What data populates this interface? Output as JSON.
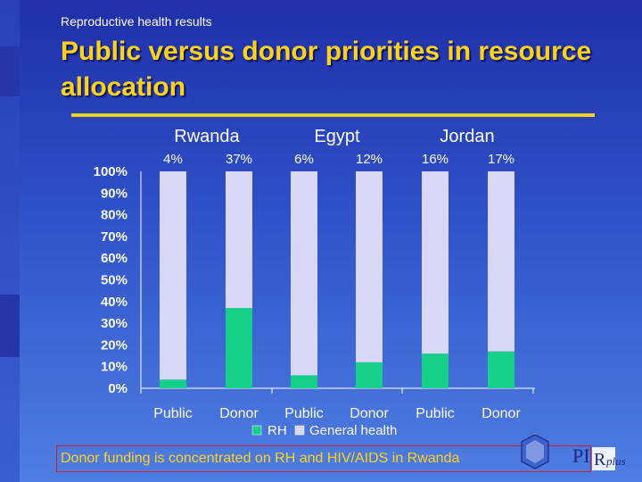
{
  "slide": {
    "subtitle": "Reproductive health results",
    "title": "Public versus donor priorities in resource allocation",
    "caption": "Donor funding is concentrated on RH and HIV/AIDS in Rwanda",
    "logo_letters": "PI",
    "logo_suffix": "plus"
  },
  "colors": {
    "accent": "#ffd21a",
    "rh": "#16d08a",
    "general_health": "#d8d8f6",
    "caption_border": "#cc2020"
  },
  "chart_data": {
    "type": "bar",
    "stacked": true,
    "percent_scale": true,
    "groups": [
      "Rwanda",
      "Egypt",
      "Jordan"
    ],
    "categories": [
      "Public",
      "Donor",
      "Public",
      "Donor",
      "Public",
      "Donor"
    ],
    "group_of_category": [
      0,
      0,
      1,
      1,
      2,
      2
    ],
    "series": [
      {
        "name": "RH",
        "values": [
          4,
          37,
          6,
          12,
          16,
          17
        ]
      },
      {
        "name": "General health",
        "values": [
          96,
          63,
          94,
          88,
          84,
          83
        ]
      }
    ],
    "value_labels": [
      "4%",
      "37%",
      "6%",
      "12%",
      "16%",
      "17%"
    ],
    "yticks": [
      "0%",
      "10%",
      "20%",
      "30%",
      "40%",
      "50%",
      "60%",
      "70%",
      "80%",
      "90%",
      "100%"
    ],
    "ylim": [
      0,
      100
    ],
    "legend": [
      "RH",
      "General health"
    ],
    "legend_position": "bottom"
  }
}
